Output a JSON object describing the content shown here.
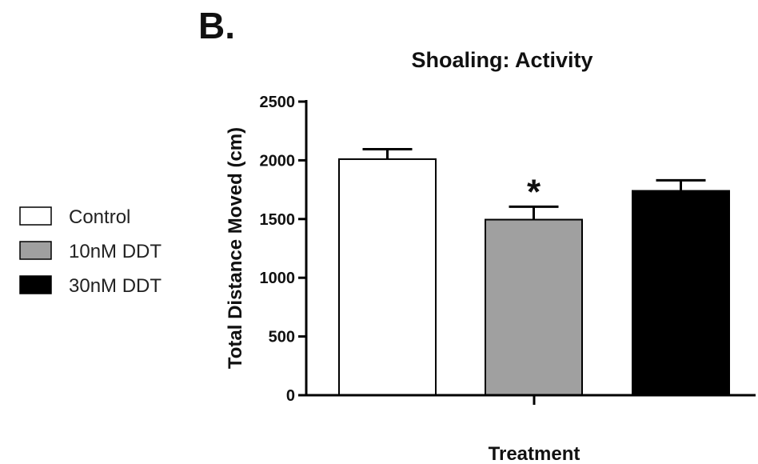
{
  "panel_label": "B.",
  "chart_data": {
    "type": "bar",
    "title": "Shoaling: Activity",
    "xlabel": "Treatment",
    "ylabel": "Total Distance Moved (cm)",
    "ylim": [
      0,
      2500
    ],
    "yticks": [
      0,
      500,
      1000,
      1500,
      2000,
      2500
    ],
    "grid": false,
    "legend_position": "left",
    "categories": [
      "Control",
      "10nM DDT",
      "30nM DDT"
    ],
    "values": [
      2010,
      1495,
      1740
    ],
    "errors": [
      85,
      110,
      90
    ],
    "colors": [
      "#ffffff",
      "#a0a0a0",
      "#000000"
    ],
    "annotations": [
      "",
      "*",
      ""
    ]
  }
}
